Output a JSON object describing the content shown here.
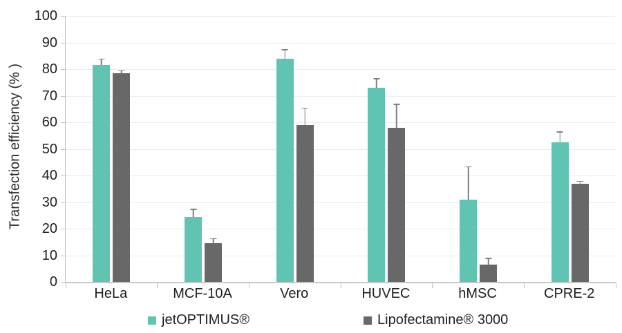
{
  "chart_data": {
    "type": "bar",
    "title": "",
    "categories": [
      "HeLa",
      "MCF-10A",
      "Vero",
      "HUVEC",
      "hMSC",
      "CPRE-2"
    ],
    "series": [
      {
        "name": "jetOPTIMUS®",
        "color": "#5fc4b2",
        "values": [
          81.5,
          24.5,
          84,
          73,
          31,
          52.5
        ],
        "errors_up": [
          2.5,
          3,
          3.5,
          3.5,
          12.5,
          4
        ]
      },
      {
        "name": "Lipofectamine® 3000",
        "color": "#686868",
        "values": [
          78.5,
          14.5,
          59,
          58,
          6.5,
          37
        ],
        "errors_up": [
          1,
          2,
          6.5,
          9,
          2.5,
          1
        ]
      }
    ],
    "xlabel": "",
    "ylabel": "Transfection efficiency (% )",
    "ylim": [
      0,
      100
    ],
    "ytick_step": 10,
    "yticks": [
      0,
      10,
      20,
      30,
      40,
      50,
      60,
      70,
      80,
      90,
      100
    ],
    "grid": true,
    "legend_position": "bottom",
    "error_bar_direction": "up"
  },
  "style": {
    "grid_color": "#ebebeb",
    "axis_color": "#bfbfbf",
    "error_color": "#7f7f7f",
    "text_color": "#1f1f1f"
  }
}
